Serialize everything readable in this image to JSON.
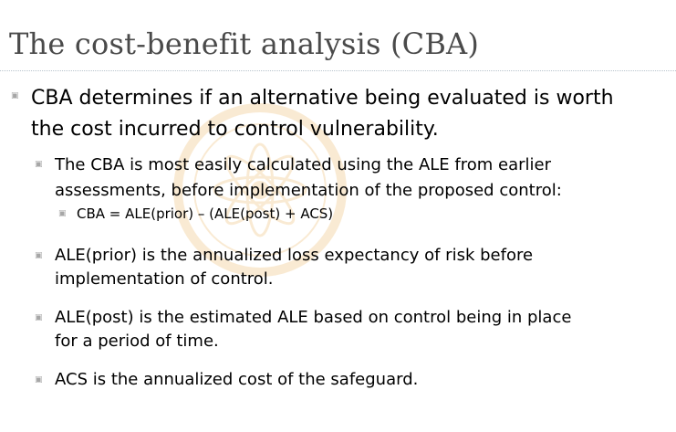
{
  "slide": {
    "title": "The cost-benefit analysis (CBA)",
    "bullet_icon": "square-bullet-icon",
    "watermark_icon": "emblem-watermark-icon",
    "points": [
      {
        "level": 1,
        "lines": [
          "CBA determines if an alternative being evaluated is worth",
          "the cost incurred to control vulnerability."
        ]
      },
      {
        "level": 2,
        "lines": [
          "The CBA is most easily calculated using the ALE from earlier",
          "assessments, before implementation of the proposed control:"
        ]
      },
      {
        "level": 3,
        "lines": [
          "CBA = ALE(prior) – (ALE(post) + ACS)"
        ]
      },
      {
        "level": 2,
        "lines": [
          "ALE(prior) is the annualized loss expectancy of risk before",
          "implementation of control."
        ]
      },
      {
        "level": 2,
        "lines": [
          "ALE(post) is the estimated ALE based on control being in place",
          "for a period of time."
        ]
      },
      {
        "level": 2,
        "lines": [
          "ACS is the annualized cost of the safeguard."
        ]
      }
    ]
  },
  "colors": {
    "title": "#4a4a4a",
    "body_text": "#000000",
    "bullet": "#a6a6a6",
    "watermark": "#e8a33c"
  }
}
